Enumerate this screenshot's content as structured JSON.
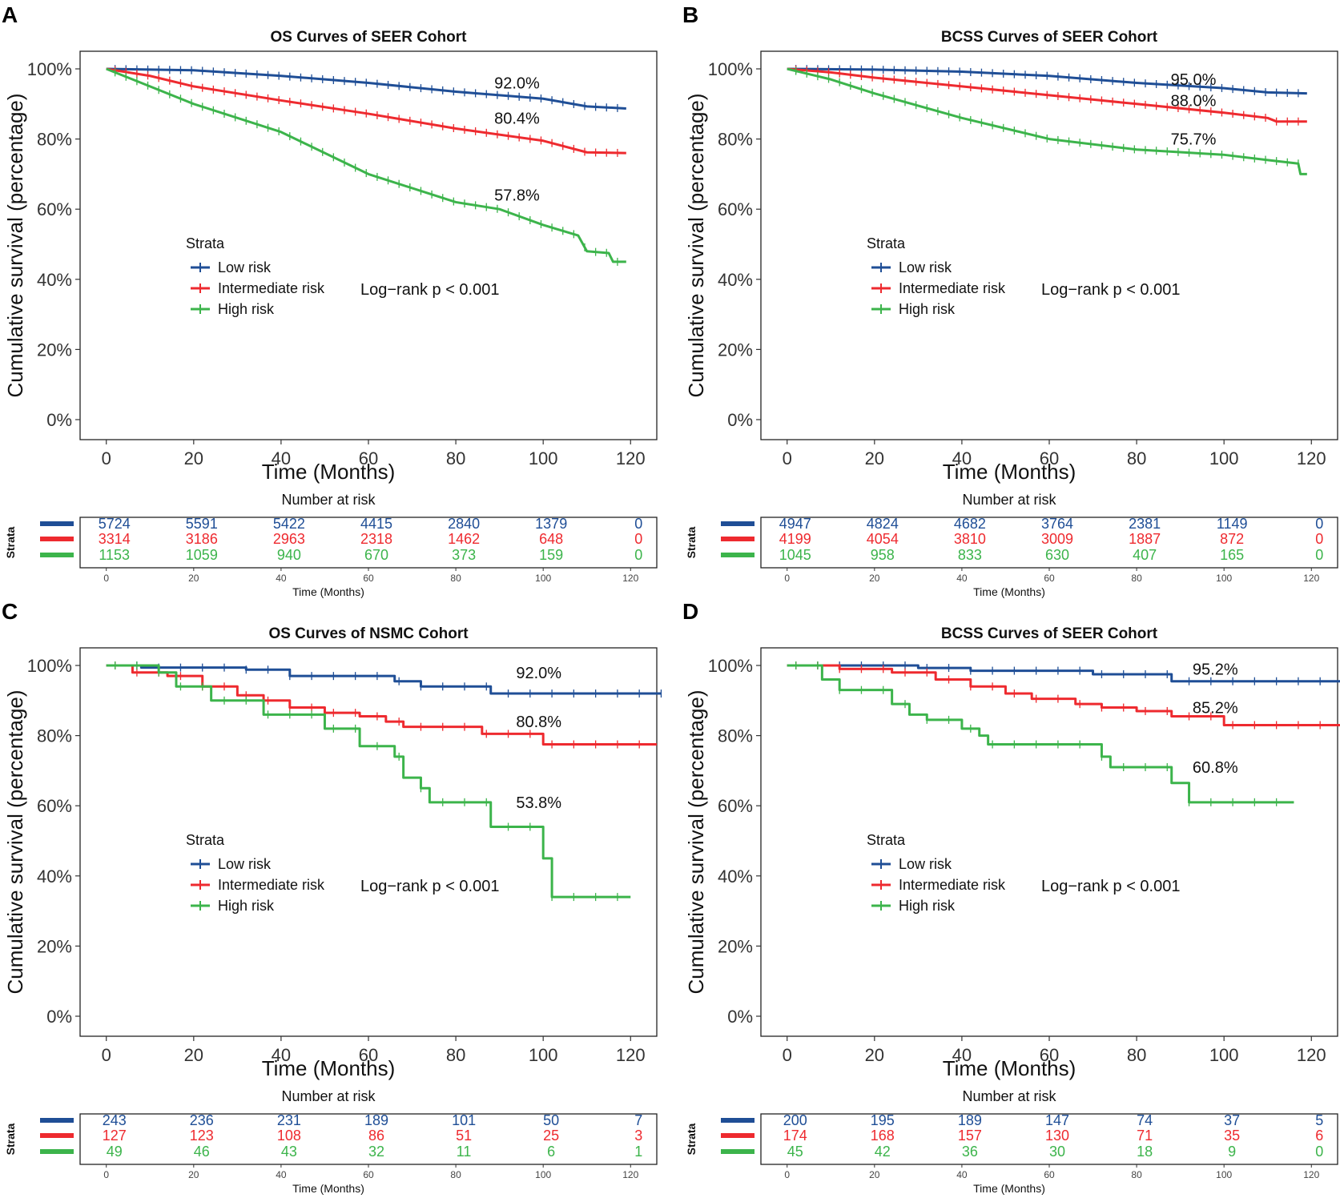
{
  "colors": {
    "low": "#1f4e96",
    "intermediate": "#ee2a2f",
    "high": "#3cb44b"
  },
  "common": {
    "ylabel": "Cumulative survival (percentage)",
    "xlabel": "Time (Months)",
    "legend_title": "Strata",
    "strata_names": [
      "Low risk",
      "Intermediate risk",
      "High risk"
    ],
    "risk_title": "Number at risk",
    "risk_strata_label": "Strata",
    "risk_xlabel": "Time (Months)"
  },
  "chart_data": [
    {
      "letter": "A",
      "type": "line",
      "title": "OS Curves of SEER Cohort",
      "xlim": [
        0,
        120
      ],
      "ylim": [
        0,
        100
      ],
      "xticks": [
        0,
        20,
        40,
        60,
        80,
        100,
        120
      ],
      "xtick_labels": [
        "0",
        "20",
        "40",
        "60",
        "80",
        "100",
        "120"
      ],
      "yticks": [
        0,
        20,
        40,
        60,
        80,
        100
      ],
      "ytick_labels": [
        "0%",
        "20%",
        "40%",
        "60%",
        "80%",
        "100%"
      ],
      "logrank": "Log−rank p < 0.001",
      "annotations": [
        {
          "text": "92.0%",
          "x": 94,
          "y": 96
        },
        {
          "text": "80.4%",
          "x": 94,
          "y": 86
        },
        {
          "text": "57.8%",
          "x": 94,
          "y": 64
        }
      ],
      "series": [
        {
          "name": "Low risk",
          "style": "smooth",
          "points": [
            [
              0,
              100
            ],
            [
              20,
              99.6
            ],
            [
              40,
              98
            ],
            [
              60,
              96
            ],
            [
              80,
              93.5
            ],
            [
              100,
              91.5
            ],
            [
              110,
              89.3
            ],
            [
              119,
              88.7
            ]
          ]
        },
        {
          "name": "Intermediate risk",
          "style": "smooth",
          "points": [
            [
              0,
              100
            ],
            [
              10,
              98
            ],
            [
              20,
              95
            ],
            [
              40,
              91
            ],
            [
              60,
              87.2
            ],
            [
              80,
              83
            ],
            [
              100,
              79.5
            ],
            [
              110,
              76.2
            ],
            [
              119,
              76
            ]
          ]
        },
        {
          "name": "High risk",
          "style": "smooth",
          "points": [
            [
              0,
              100
            ],
            [
              10,
              95
            ],
            [
              20,
              90
            ],
            [
              40,
              82
            ],
            [
              60,
              70
            ],
            [
              80,
              62
            ],
            [
              90,
              60
            ],
            [
              100,
              55.5
            ],
            [
              108,
              52.5
            ],
            [
              110,
              48
            ],
            [
              115,
              47.5
            ],
            [
              116,
              45
            ],
            [
              119,
              45
            ]
          ]
        }
      ],
      "risk_table": {
        "times": [
          0,
          20,
          40,
          60,
          80,
          100,
          120
        ],
        "rows": [
          [
            "5724",
            "5591",
            "5422",
            "4415",
            "2840",
            "1379",
            "0"
          ],
          [
            "3314",
            "3186",
            "2963",
            "2318",
            "1462",
            "648",
            "0"
          ],
          [
            "1153",
            "1059",
            "940",
            "670",
            "373",
            "159",
            "0"
          ]
        ]
      }
    },
    {
      "letter": "B",
      "type": "line",
      "title": "BCSS Curves of SEER Cohort",
      "xlim": [
        0,
        120
      ],
      "ylim": [
        0,
        100
      ],
      "xticks": [
        0,
        20,
        40,
        60,
        80,
        100,
        120
      ],
      "xtick_labels": [
        "0",
        "20",
        "40",
        "60",
        "80",
        "100",
        "120"
      ],
      "yticks": [
        0,
        20,
        40,
        60,
        80,
        100
      ],
      "ytick_labels": [
        "0%",
        "20%",
        "40%",
        "60%",
        "80%",
        "100%"
      ],
      "logrank": "Log−rank p < 0.001",
      "annotations": [
        {
          "text": "95.0%",
          "x": 93,
          "y": 97
        },
        {
          "text": "88.0%",
          "x": 93,
          "y": 91
        },
        {
          "text": "75.7%",
          "x": 93,
          "y": 80
        }
      ],
      "series": [
        {
          "name": "Low risk",
          "style": "smooth",
          "points": [
            [
              0,
              100
            ],
            [
              20,
              99.8
            ],
            [
              40,
              99.2
            ],
            [
              60,
              98
            ],
            [
              80,
              96
            ],
            [
              100,
              94.5
            ],
            [
              110,
              93.3
            ],
            [
              119,
              93
            ]
          ]
        },
        {
          "name": "Intermediate risk",
          "style": "smooth",
          "points": [
            [
              0,
              100
            ],
            [
              10,
              99
            ],
            [
              20,
              97.5
            ],
            [
              40,
              95
            ],
            [
              60,
              92.5
            ],
            [
              80,
              90
            ],
            [
              100,
              87.5
            ],
            [
              110,
              86
            ],
            [
              112,
              85
            ],
            [
              119,
              85
            ]
          ]
        },
        {
          "name": "High risk",
          "style": "smooth",
          "points": [
            [
              0,
              100
            ],
            [
              10,
              97
            ],
            [
              20,
              93
            ],
            [
              40,
              86
            ],
            [
              60,
              80
            ],
            [
              80,
              77
            ],
            [
              100,
              75.5
            ],
            [
              110,
              74
            ],
            [
              117,
              73
            ],
            [
              117.5,
              70
            ],
            [
              119,
              70
            ]
          ]
        }
      ],
      "risk_table": {
        "times": [
          0,
          20,
          40,
          60,
          80,
          100,
          120
        ],
        "rows": [
          [
            "4947",
            "4824",
            "4682",
            "3764",
            "2381",
            "1149",
            "0"
          ],
          [
            "4199",
            "4054",
            "3810",
            "3009",
            "1887",
            "872",
            "0"
          ],
          [
            "1045",
            "958",
            "833",
            "630",
            "407",
            "165",
            "0"
          ]
        ]
      }
    },
    {
      "letter": "C",
      "type": "line",
      "title": "OS Curves of NSMC Cohort",
      "xlim": [
        0,
        120
      ],
      "ylim": [
        0,
        100
      ],
      "xticks": [
        0,
        20,
        40,
        60,
        80,
        100,
        120
      ],
      "xtick_labels": [
        "0",
        "20",
        "40",
        "60",
        "80",
        "100",
        "120"
      ],
      "yticks": [
        0,
        20,
        40,
        60,
        80,
        100
      ],
      "ytick_labels": [
        "0%",
        "20%",
        "40%",
        "60%",
        "80%",
        "100%"
      ],
      "logrank": "Log−rank p < 0.001",
      "annotations": [
        {
          "text": "92.0%",
          "x": 99,
          "y": 98
        },
        {
          "text": "80.8%",
          "x": 99,
          "y": 84
        },
        {
          "text": "53.8%",
          "x": 99,
          "y": 61
        }
      ],
      "series": [
        {
          "name": "Low risk",
          "style": "step",
          "points": [
            [
              0,
              100
            ],
            [
              8,
              99.4
            ],
            [
              32,
              98.8
            ],
            [
              42,
              97
            ],
            [
              66,
              95.5
            ],
            [
              72,
              94
            ],
            [
              88,
              92
            ],
            [
              127,
              92
            ]
          ]
        },
        {
          "name": "Intermediate risk",
          "style": "step",
          "points": [
            [
              0,
              100
            ],
            [
              6,
              98
            ],
            [
              14,
              97
            ],
            [
              22,
              94
            ],
            [
              30,
              91.5
            ],
            [
              36,
              90
            ],
            [
              42,
              88
            ],
            [
              50,
              86.5
            ],
            [
              58,
              85.5
            ],
            [
              64,
              84
            ],
            [
              68,
              82.5
            ],
            [
              86,
              80.5
            ],
            [
              100,
              77.5
            ],
            [
              126,
              77.5
            ]
          ]
        },
        {
          "name": "High risk",
          "style": "step",
          "points": [
            [
              0,
              100
            ],
            [
              12,
              98
            ],
            [
              16,
              94
            ],
            [
              24,
              90
            ],
            [
              36,
              86
            ],
            [
              50,
              82
            ],
            [
              58,
              77
            ],
            [
              66,
              74
            ],
            [
              68,
              68
            ],
            [
              72,
              65
            ],
            [
              74,
              61
            ],
            [
              88,
              54
            ],
            [
              100,
              45
            ],
            [
              102,
              34
            ],
            [
              120,
              34
            ]
          ]
        }
      ],
      "risk_table": {
        "times": [
          0,
          20,
          40,
          60,
          80,
          100,
          120
        ],
        "rows": [
          [
            "243",
            "236",
            "231",
            "189",
            "101",
            "50",
            "7"
          ],
          [
            "127",
            "123",
            "108",
            "86",
            "51",
            "25",
            "3"
          ],
          [
            "49",
            "46",
            "43",
            "32",
            "11",
            "6",
            "1"
          ]
        ]
      }
    },
    {
      "letter": "D",
      "type": "line",
      "title": "BCSS Curves of SEER Cohort",
      "xlim": [
        0,
        120
      ],
      "ylim": [
        0,
        100
      ],
      "xticks": [
        0,
        20,
        40,
        60,
        80,
        100,
        120
      ],
      "xtick_labels": [
        "0",
        "20",
        "40",
        "60",
        "80",
        "100",
        "120"
      ],
      "yticks": [
        0,
        20,
        40,
        60,
        80,
        100
      ],
      "ytick_labels": [
        "0%",
        "20%",
        "40%",
        "60%",
        "80%",
        "100%"
      ],
      "logrank": "Log−rank p < 0.001",
      "annotations": [
        {
          "text": "95.2%",
          "x": 98,
          "y": 99
        },
        {
          "text": "85.2%",
          "x": 98,
          "y": 88
        },
        {
          "text": "60.8%",
          "x": 98,
          "y": 71
        }
      ],
      "series": [
        {
          "name": "Low risk",
          "style": "step",
          "points": [
            [
              0,
              100
            ],
            [
              30,
              99.3
            ],
            [
              42,
              98.5
            ],
            [
              70,
              97.5
            ],
            [
              88,
              95.5
            ],
            [
              128,
              95.5
            ]
          ]
        },
        {
          "name": "Intermediate risk",
          "style": "step",
          "points": [
            [
              0,
              100
            ],
            [
              12,
              99
            ],
            [
              24,
              98
            ],
            [
              34,
              96
            ],
            [
              42,
              94
            ],
            [
              50,
              92
            ],
            [
              56,
              90.5
            ],
            [
              66,
              89
            ],
            [
              72,
              88
            ],
            [
              80,
              87
            ],
            [
              88,
              85.5
            ],
            [
              100,
              83
            ],
            [
              127,
              83
            ]
          ]
        },
        {
          "name": "High risk",
          "style": "step",
          "points": [
            [
              0,
              100
            ],
            [
              8,
              96
            ],
            [
              12,
              93
            ],
            [
              24,
              89
            ],
            [
              28,
              86
            ],
            [
              32,
              84.5
            ],
            [
              40,
              82
            ],
            [
              44,
              80
            ],
            [
              46,
              77.5
            ],
            [
              72,
              74
            ],
            [
              74,
              71
            ],
            [
              88,
              66.5
            ],
            [
              92,
              61
            ],
            [
              116,
              61
            ]
          ]
        }
      ],
      "risk_table": {
        "times": [
          0,
          20,
          40,
          60,
          80,
          100,
          120
        ],
        "rows": [
          [
            "200",
            "195",
            "189",
            "147",
            "74",
            "37",
            "5"
          ],
          [
            "174",
            "168",
            "157",
            "130",
            "71",
            "35",
            "6"
          ],
          [
            "45",
            "42",
            "36",
            "30",
            "18",
            "9",
            "0"
          ]
        ]
      }
    }
  ]
}
